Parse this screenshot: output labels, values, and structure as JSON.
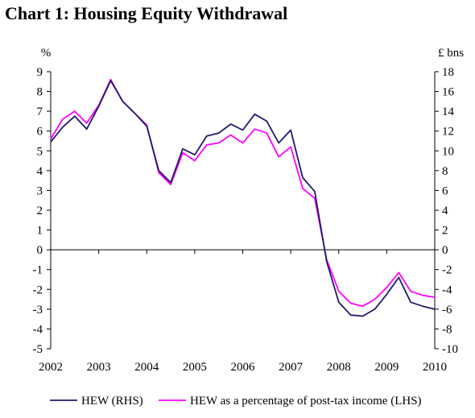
{
  "title": "Chart 1: Housing Equity Withdrawal",
  "chart_data": {
    "type": "line",
    "title": "Chart 1: Housing Equity Withdrawal",
    "left_axis": {
      "unit": "%",
      "min": -5,
      "max": 9,
      "step": 1,
      "ticks": [
        "-5",
        "-4",
        "-3",
        "-2",
        "-1",
        "0",
        "1",
        "2",
        "3",
        "4",
        "5",
        "6",
        "7",
        "8",
        "9"
      ]
    },
    "right_axis": {
      "unit": "£ bns",
      "min": -10,
      "max": 18,
      "step": 2,
      "ticks": [
        "-10",
        "-8",
        "-6",
        "-4",
        "-2",
        "0",
        "2",
        "4",
        "6",
        "8",
        "10",
        "12",
        "14",
        "16",
        "18"
      ]
    },
    "x_axis": {
      "min": 2002,
      "max": 2010,
      "ticks": [
        "2002",
        "2003",
        "2004",
        "2005",
        "2006",
        "2007",
        "2008",
        "2009",
        "2010"
      ]
    },
    "grid": false,
    "legend": "bottom",
    "series": [
      {
        "name": "HEW (RHS)",
        "color": "#1f1a6b",
        "axis": "right",
        "x": [
          2002.0,
          2002.25,
          2002.5,
          2002.75,
          2003.0,
          2003.25,
          2003.5,
          2003.75,
          2004.0,
          2004.25,
          2004.5,
          2004.75,
          2005.0,
          2005.25,
          2005.5,
          2005.75,
          2006.0,
          2006.25,
          2006.5,
          2006.75,
          2007.0,
          2007.25,
          2007.5,
          2007.75,
          2008.0,
          2008.25,
          2008.5,
          2008.75,
          2009.0,
          2009.25,
          2009.5,
          2009.75,
          2010.0
        ],
        "values": [
          10.9,
          12.4,
          13.5,
          12.2,
          14.5,
          17.1,
          15.0,
          13.8,
          12.5,
          8.0,
          6.8,
          10.2,
          9.6,
          11.5,
          11.8,
          12.7,
          12.1,
          13.7,
          13.0,
          10.8,
          12.1,
          7.3,
          5.9,
          -1.2,
          -5.3,
          -6.6,
          -6.7,
          -6.0,
          -4.5,
          -2.8,
          -5.3,
          -5.7,
          -6.0
        ]
      },
      {
        "name": "HEW as a percentage of post-tax income (LHS)",
        "color": "#ff00ff",
        "axis": "left",
        "x": [
          2002.0,
          2002.25,
          2002.5,
          2002.75,
          2003.0,
          2003.25,
          2003.5,
          2003.75,
          2004.0,
          2004.25,
          2004.5,
          2004.75,
          2005.0,
          2005.25,
          2005.5,
          2005.75,
          2006.0,
          2006.25,
          2006.5,
          2006.75,
          2007.0,
          2007.25,
          2007.5,
          2007.75,
          2008.0,
          2008.25,
          2008.5,
          2008.75,
          2009.0,
          2009.25,
          2009.5,
          2009.75,
          2010.0
        ],
        "values": [
          5.6,
          6.6,
          7.0,
          6.4,
          7.3,
          8.6,
          7.5,
          6.9,
          6.3,
          3.9,
          3.3,
          4.9,
          4.5,
          5.3,
          5.4,
          5.8,
          5.4,
          6.1,
          5.9,
          4.7,
          5.2,
          3.1,
          2.6,
          -0.5,
          -2.1,
          -2.7,
          -2.85,
          -2.5,
          -1.9,
          -1.15,
          -2.1,
          -2.3,
          -2.4
        ]
      }
    ]
  }
}
